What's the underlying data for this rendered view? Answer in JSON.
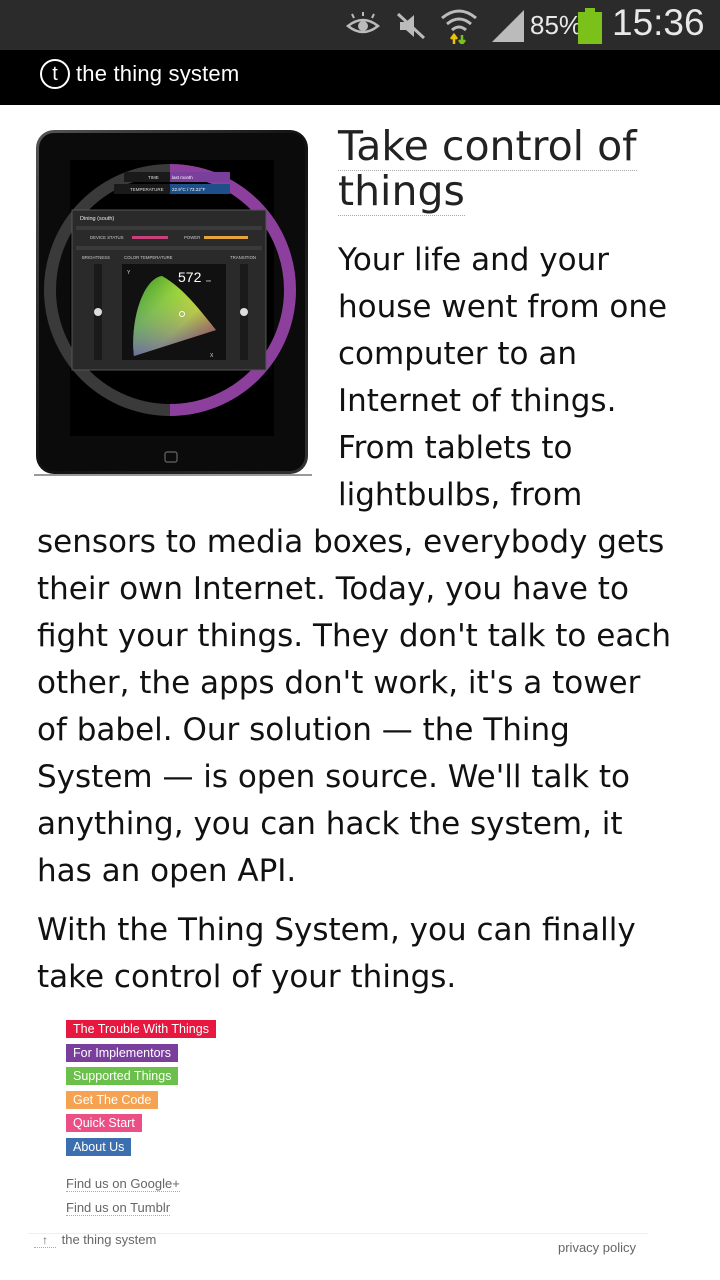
{
  "status_bar": {
    "battery_percent": "85%",
    "time": "15:36",
    "icons": [
      "eye-icon",
      "mute-icon",
      "wifi-icon",
      "signal-icon",
      "battery-icon"
    ],
    "battery_color": "#7cc11a"
  },
  "header": {
    "logo_letter": "t",
    "site_name": "the thing system"
  },
  "tablet_screen": {
    "room_label": "Dining (south)",
    "device_status_label": "DEVICE STATUS",
    "power_label": "POWER",
    "brightness_label": "BRIGHTNESS",
    "color_temperature_label": "COLOR TEMPERATURE",
    "transition_label": "TRANSITION",
    "time_label": "TIME",
    "time_value": "last month",
    "temperature_label": "TEMPERATURE",
    "temperature_value": "22.9°C / 73.22°F",
    "wavelength_value": "572",
    "wavelength_unit": "nm",
    "y_axis": "Y",
    "x_axis": "X"
  },
  "main": {
    "title_line1": "Take control of",
    "title_line2": "things",
    "paragraph1_lines": [
      "Your life and your",
      "house went from one",
      "computer to an",
      "Internet of things.",
      "From tablets to",
      "lightbulbs, from",
      "sensors to media boxes, everybody gets",
      "their own Internet. Today, you have to",
      "fight your things. They don't talk to each",
      "other, the apps don't work, it's a tower",
      "of babel. Our solution — the Thing",
      "System — is open source. We'll talk to",
      "anything, you can hack the system, it",
      "has an open API."
    ],
    "paragraph2_lines": [
      "With the Thing System, you can finally",
      "take control of your things."
    ]
  },
  "nav_links": [
    {
      "label": "The Trouble With Things",
      "color": "#e8173f"
    },
    {
      "label": "For Implementors",
      "color": "#7a3e9d"
    },
    {
      "label": "Supported Things",
      "color": "#6ac04a"
    },
    {
      "label": "Get The Code",
      "color": "#f5a352"
    },
    {
      "label": "Quick Start",
      "color": "#ec4f86"
    },
    {
      "label": "About Us",
      "color": "#3c6fb0"
    }
  ],
  "social": {
    "google": "Find us on Google+",
    "tumblr": "Find us on Tumblr"
  },
  "footer": {
    "home_arrow": "↑",
    "site_name": "the thing system",
    "privacy": "privacy policy"
  }
}
